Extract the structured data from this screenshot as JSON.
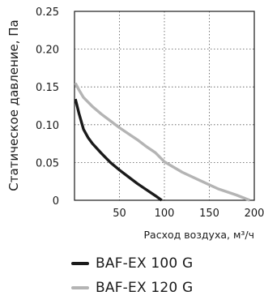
{
  "chart_data": {
    "type": "line",
    "title": "",
    "xlabel": "Расход воздуха, м³/ч",
    "ylabel": "Статическое давление, Па",
    "xlim": [
      0,
      200
    ],
    "ylim": [
      0,
      0.25
    ],
    "x_ticks": [
      50,
      100,
      150,
      200
    ],
    "x_tick_labels": [
      "50",
      "100",
      "150",
      "200"
    ],
    "y_ticks": [
      0,
      0.05,
      0.1,
      0.15,
      0.2,
      0.25
    ],
    "y_tick_labels": [
      "0",
      "0.05",
      "0.10",
      "0.15",
      "0.20",
      "0.25"
    ],
    "grid": true,
    "legend_position": "bottom",
    "series": [
      {
        "name": "BAF-EX 100 G",
        "color": "#1a1a1a",
        "points": [
          [
            1,
            0.134
          ],
          [
            5,
            0.115
          ],
          [
            10,
            0.094
          ],
          [
            15,
            0.083
          ],
          [
            20,
            0.075
          ],
          [
            30,
            0.062
          ],
          [
            40,
            0.05
          ],
          [
            50,
            0.04
          ],
          [
            60,
            0.031
          ],
          [
            70,
            0.022
          ],
          [
            80,
            0.014
          ],
          [
            90,
            0.006
          ],
          [
            97,
            0
          ]
        ]
      },
      {
        "name": "BAF-EX 120 G",
        "color": "#b4b4b4",
        "points": [
          [
            1,
            0.155
          ],
          [
            5,
            0.146
          ],
          [
            10,
            0.136
          ],
          [
            20,
            0.124
          ],
          [
            30,
            0.114
          ],
          [
            40,
            0.105
          ],
          [
            50,
            0.096
          ],
          [
            60,
            0.088
          ],
          [
            70,
            0.08
          ],
          [
            80,
            0.071
          ],
          [
            90,
            0.063
          ],
          [
            100,
            0.051
          ],
          [
            120,
            0.037
          ],
          [
            140,
            0.026
          ],
          [
            160,
            0.015
          ],
          [
            180,
            0.007
          ],
          [
            195,
            0
          ]
        ]
      }
    ]
  }
}
